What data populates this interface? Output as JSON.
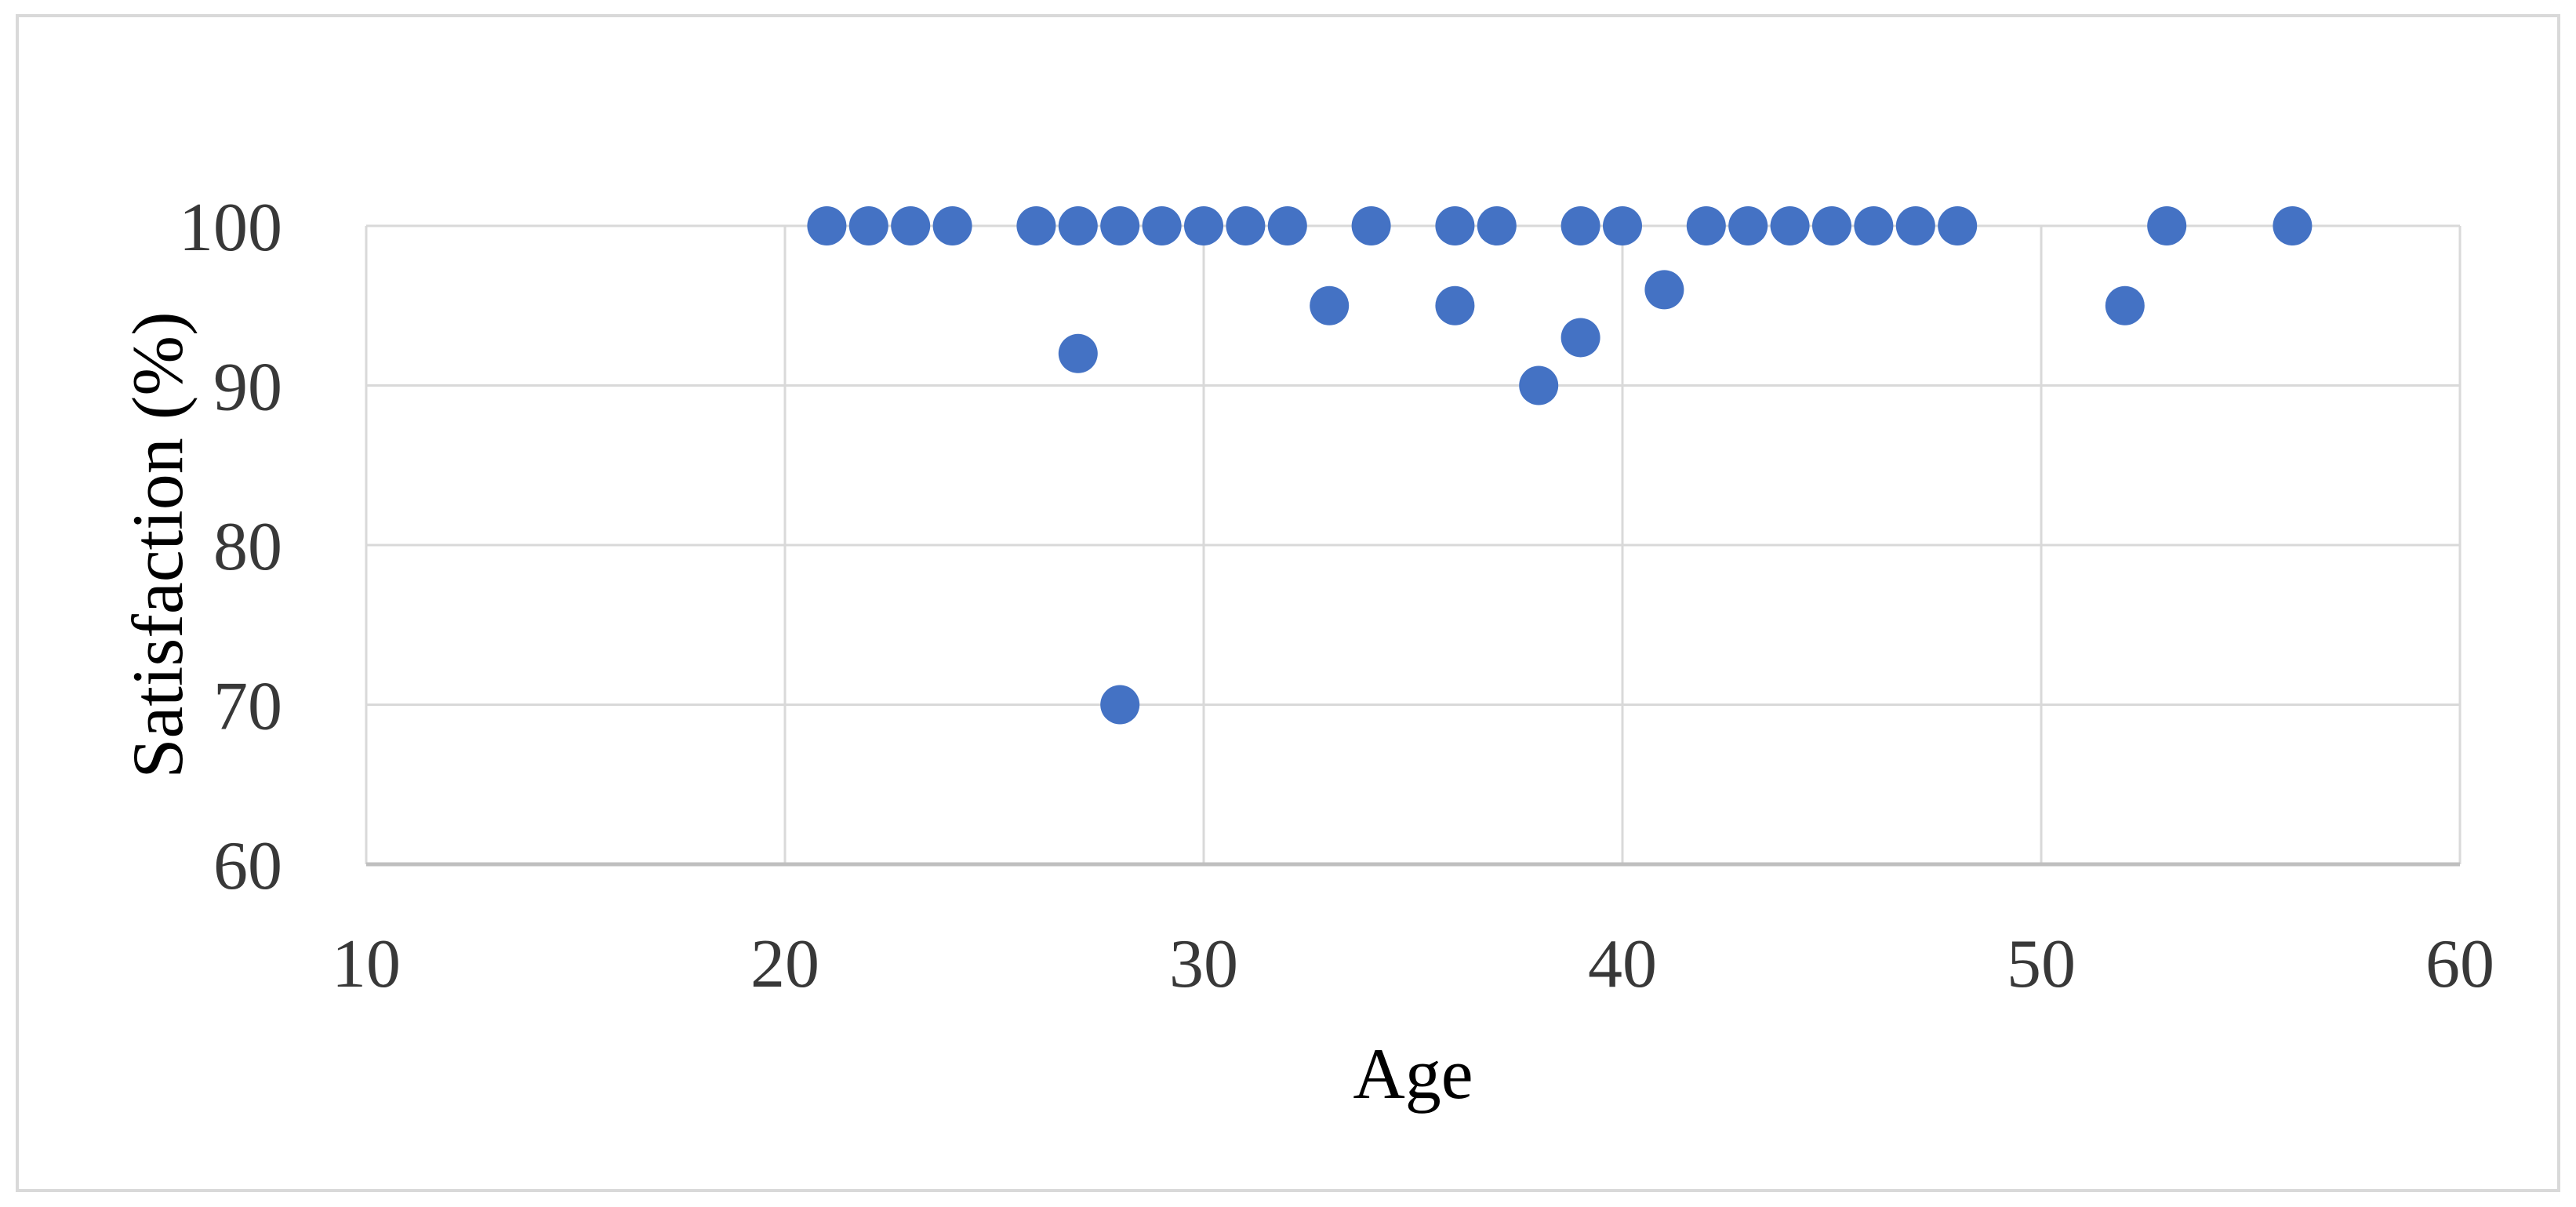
{
  "figure": {
    "background_color": "#ffffff",
    "border_color": "#d9d9d9"
  },
  "chart_data": {
    "type": "scatter",
    "title": "",
    "xlabel": "Age",
    "ylabel": "Satisfaction (%)",
    "xlim": [
      10,
      60
    ],
    "ylim": [
      60,
      100
    ],
    "x_ticks": [
      10,
      20,
      30,
      40,
      50,
      60
    ],
    "y_ticks": [
      100,
      90,
      80,
      70,
      60
    ],
    "grid": true,
    "legend_position": "none",
    "marker_color": "#4472c4",
    "gridline_color": "#d9d9d9",
    "axis_line_color": "#bfbfbf",
    "tick_label_color": "#383838",
    "axis_title_color": "#000000",
    "points": [
      [
        21,
        100
      ],
      [
        22,
        100
      ],
      [
        23,
        100
      ],
      [
        24,
        100
      ],
      [
        26,
        100
      ],
      [
        27,
        100
      ],
      [
        27,
        92
      ],
      [
        28,
        100
      ],
      [
        28,
        70
      ],
      [
        29,
        100
      ],
      [
        30,
        100
      ],
      [
        31,
        100
      ],
      [
        32,
        100
      ],
      [
        33,
        95
      ],
      [
        34,
        100
      ],
      [
        36,
        100
      ],
      [
        36,
        95
      ],
      [
        37,
        100
      ],
      [
        38,
        90
      ],
      [
        39,
        100
      ],
      [
        39,
        93
      ],
      [
        40,
        100
      ],
      [
        41,
        96
      ],
      [
        42,
        100
      ],
      [
        43,
        100
      ],
      [
        44,
        100
      ],
      [
        45,
        100
      ],
      [
        46,
        100
      ],
      [
        47,
        100
      ],
      [
        48,
        100
      ],
      [
        52,
        95
      ],
      [
        53,
        100
      ],
      [
        56,
        100
      ]
    ]
  }
}
